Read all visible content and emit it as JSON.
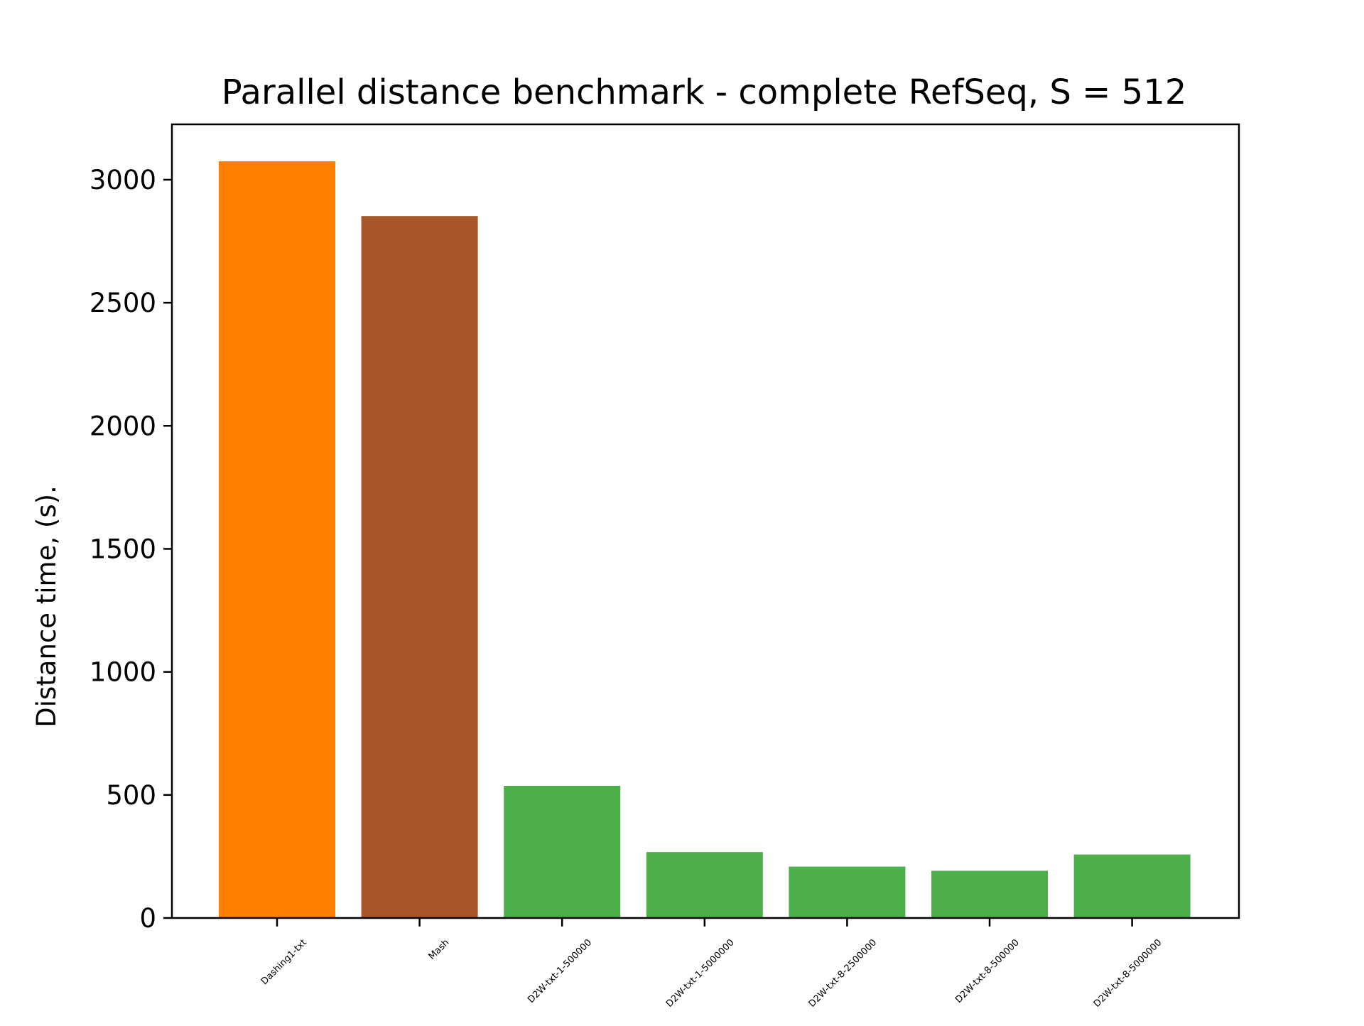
{
  "chart_data": {
    "type": "bar",
    "title": "Parallel distance benchmark - complete RefSeq, S = 512",
    "xlabel": "",
    "ylabel": "Distance time, (s).",
    "categories": [
      "Dashing1-txt",
      "Mash",
      "D2W-txt-1-500000",
      "D2W-txt-1-5000000",
      "D2W-txt-8-2500000",
      "D2W-txt-8-500000",
      "D2W-txt-8-5000000"
    ],
    "values": [
      3075,
      2852,
      537,
      268,
      209,
      192,
      258
    ],
    "colors": [
      "#ff7f00",
      "#a65628",
      "#4daf4a",
      "#4daf4a",
      "#4daf4a",
      "#4daf4a",
      "#4daf4a"
    ],
    "ylim": [
      0,
      3225
    ],
    "yticks": [
      0,
      500,
      1000,
      1500,
      2000,
      2500,
      3000
    ],
    "grid": false,
    "legend": "none"
  }
}
